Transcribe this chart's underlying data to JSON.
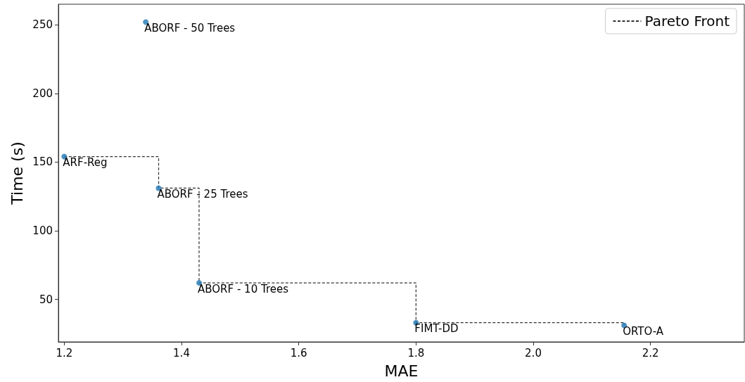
{
  "chart_data": {
    "type": "step",
    "xlabel": "MAE",
    "ylabel": "Time (s)",
    "xlim": [
      1.19,
      2.36
    ],
    "xticks": [
      1.2,
      1.4,
      1.6,
      1.8,
      {
        "value": 2,
        "label": "2.0"
      },
      2.2
    ],
    "ylim": [
      19,
      265
    ],
    "yticks": [
      50,
      100,
      150,
      200,
      250
    ],
    "legend": "top right",
    "series": [
      {
        "type": "scatter",
        "color": "#1f77b4",
        "marker": "circle",
        "x": [
          1.339,
          1.2,
          1.361,
          1.43,
          1.8,
          2.155
        ],
        "values": [
          252,
          154,
          131,
          62,
          33,
          31
        ]
      },
      {
        "name": "Pareto Front",
        "color": "#333333",
        "line_style": "dashed",
        "marker": "none",
        "x": [
          1.2,
          1.361,
          1.43,
          1.8,
          2.155
        ],
        "values": [
          154,
          131,
          62,
          33,
          31
        ]
      }
    ],
    "annotations": [
      {
        "text": "ABORF - 50 Trees",
        "x": 1.339,
        "y": 252
      },
      {
        "text": "ARF-Reg",
        "x": 1.2,
        "y": 154
      },
      {
        "text": "ABORF - 25 Trees",
        "x": 1.361,
        "y": 131
      },
      {
        "text": "ABORF - 10 Trees",
        "x": 1.43,
        "y": 62
      },
      {
        "text": "FIMT-DD",
        "x": 1.8,
        "y": 33
      },
      {
        "text": "ORTO-A",
        "x": 2.155,
        "y": 31
      }
    ]
  }
}
